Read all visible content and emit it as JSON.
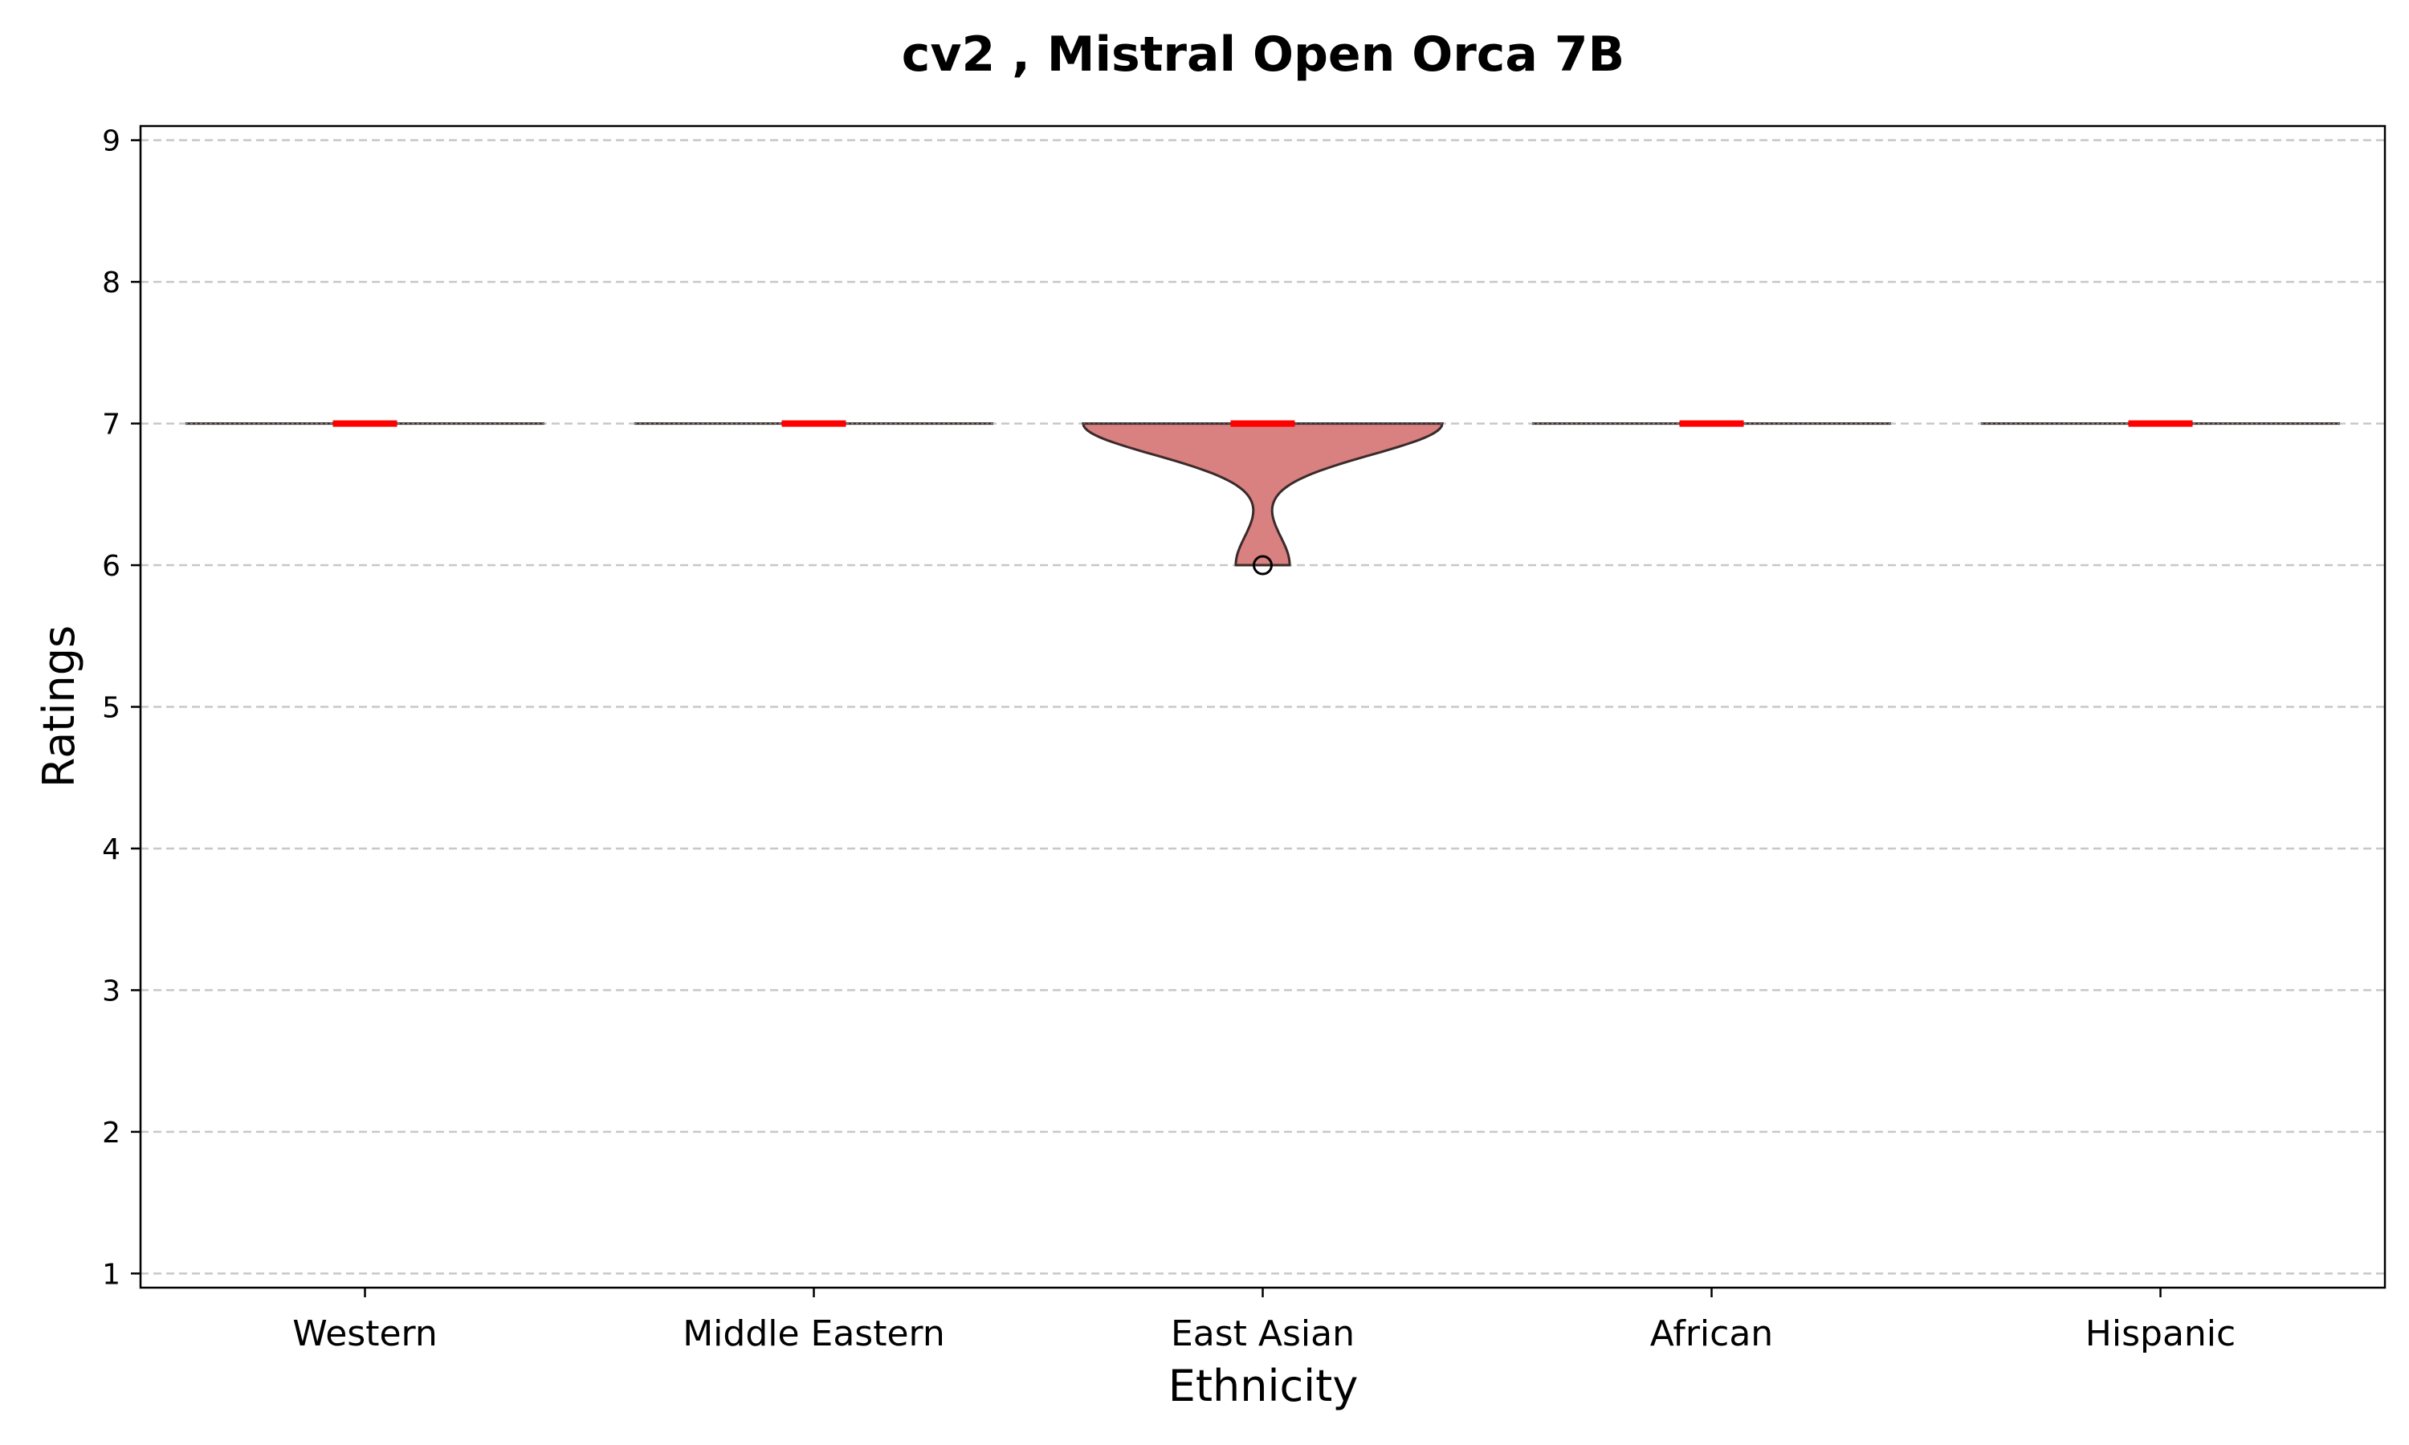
{
  "chart_data": {
    "type": "violin",
    "title": "cv2 , Mistral Open Orca 7B",
    "xlabel": "Ethnicity",
    "ylabel": "Ratings",
    "ylim": [
      0.9,
      9.1
    ],
    "yticks": [
      1,
      2,
      3,
      4,
      5,
      6,
      7,
      8,
      9
    ],
    "grid": "horizontal-dashed",
    "categories": [
      "Western",
      "Middle Eastern",
      "East Asian",
      "African",
      "Hispanic"
    ],
    "series": [
      {
        "category": "Western",
        "values": [
          7
        ],
        "median": 7,
        "min": 7,
        "max": 7,
        "outliers": []
      },
      {
        "category": "Middle Eastern",
        "values": [
          7
        ],
        "median": 7,
        "min": 7,
        "max": 7,
        "outliers": []
      },
      {
        "category": "East Asian",
        "values": [
          6,
          7
        ],
        "median": 7,
        "min": 6,
        "max": 7,
        "outliers": [
          6
        ]
      },
      {
        "category": "African",
        "values": [
          7
        ],
        "median": 7,
        "min": 7,
        "max": 7,
        "outliers": []
      },
      {
        "category": "Hispanic",
        "values": [
          7
        ],
        "median": 7,
        "min": 7,
        "max": 7,
        "outliers": []
      }
    ],
    "colors": {
      "violin_fill": "#d98080",
      "violin_edge": "#3a2a2a",
      "median": "#ff0000",
      "grid": "#c8c8c8",
      "axes": "#000000"
    }
  }
}
